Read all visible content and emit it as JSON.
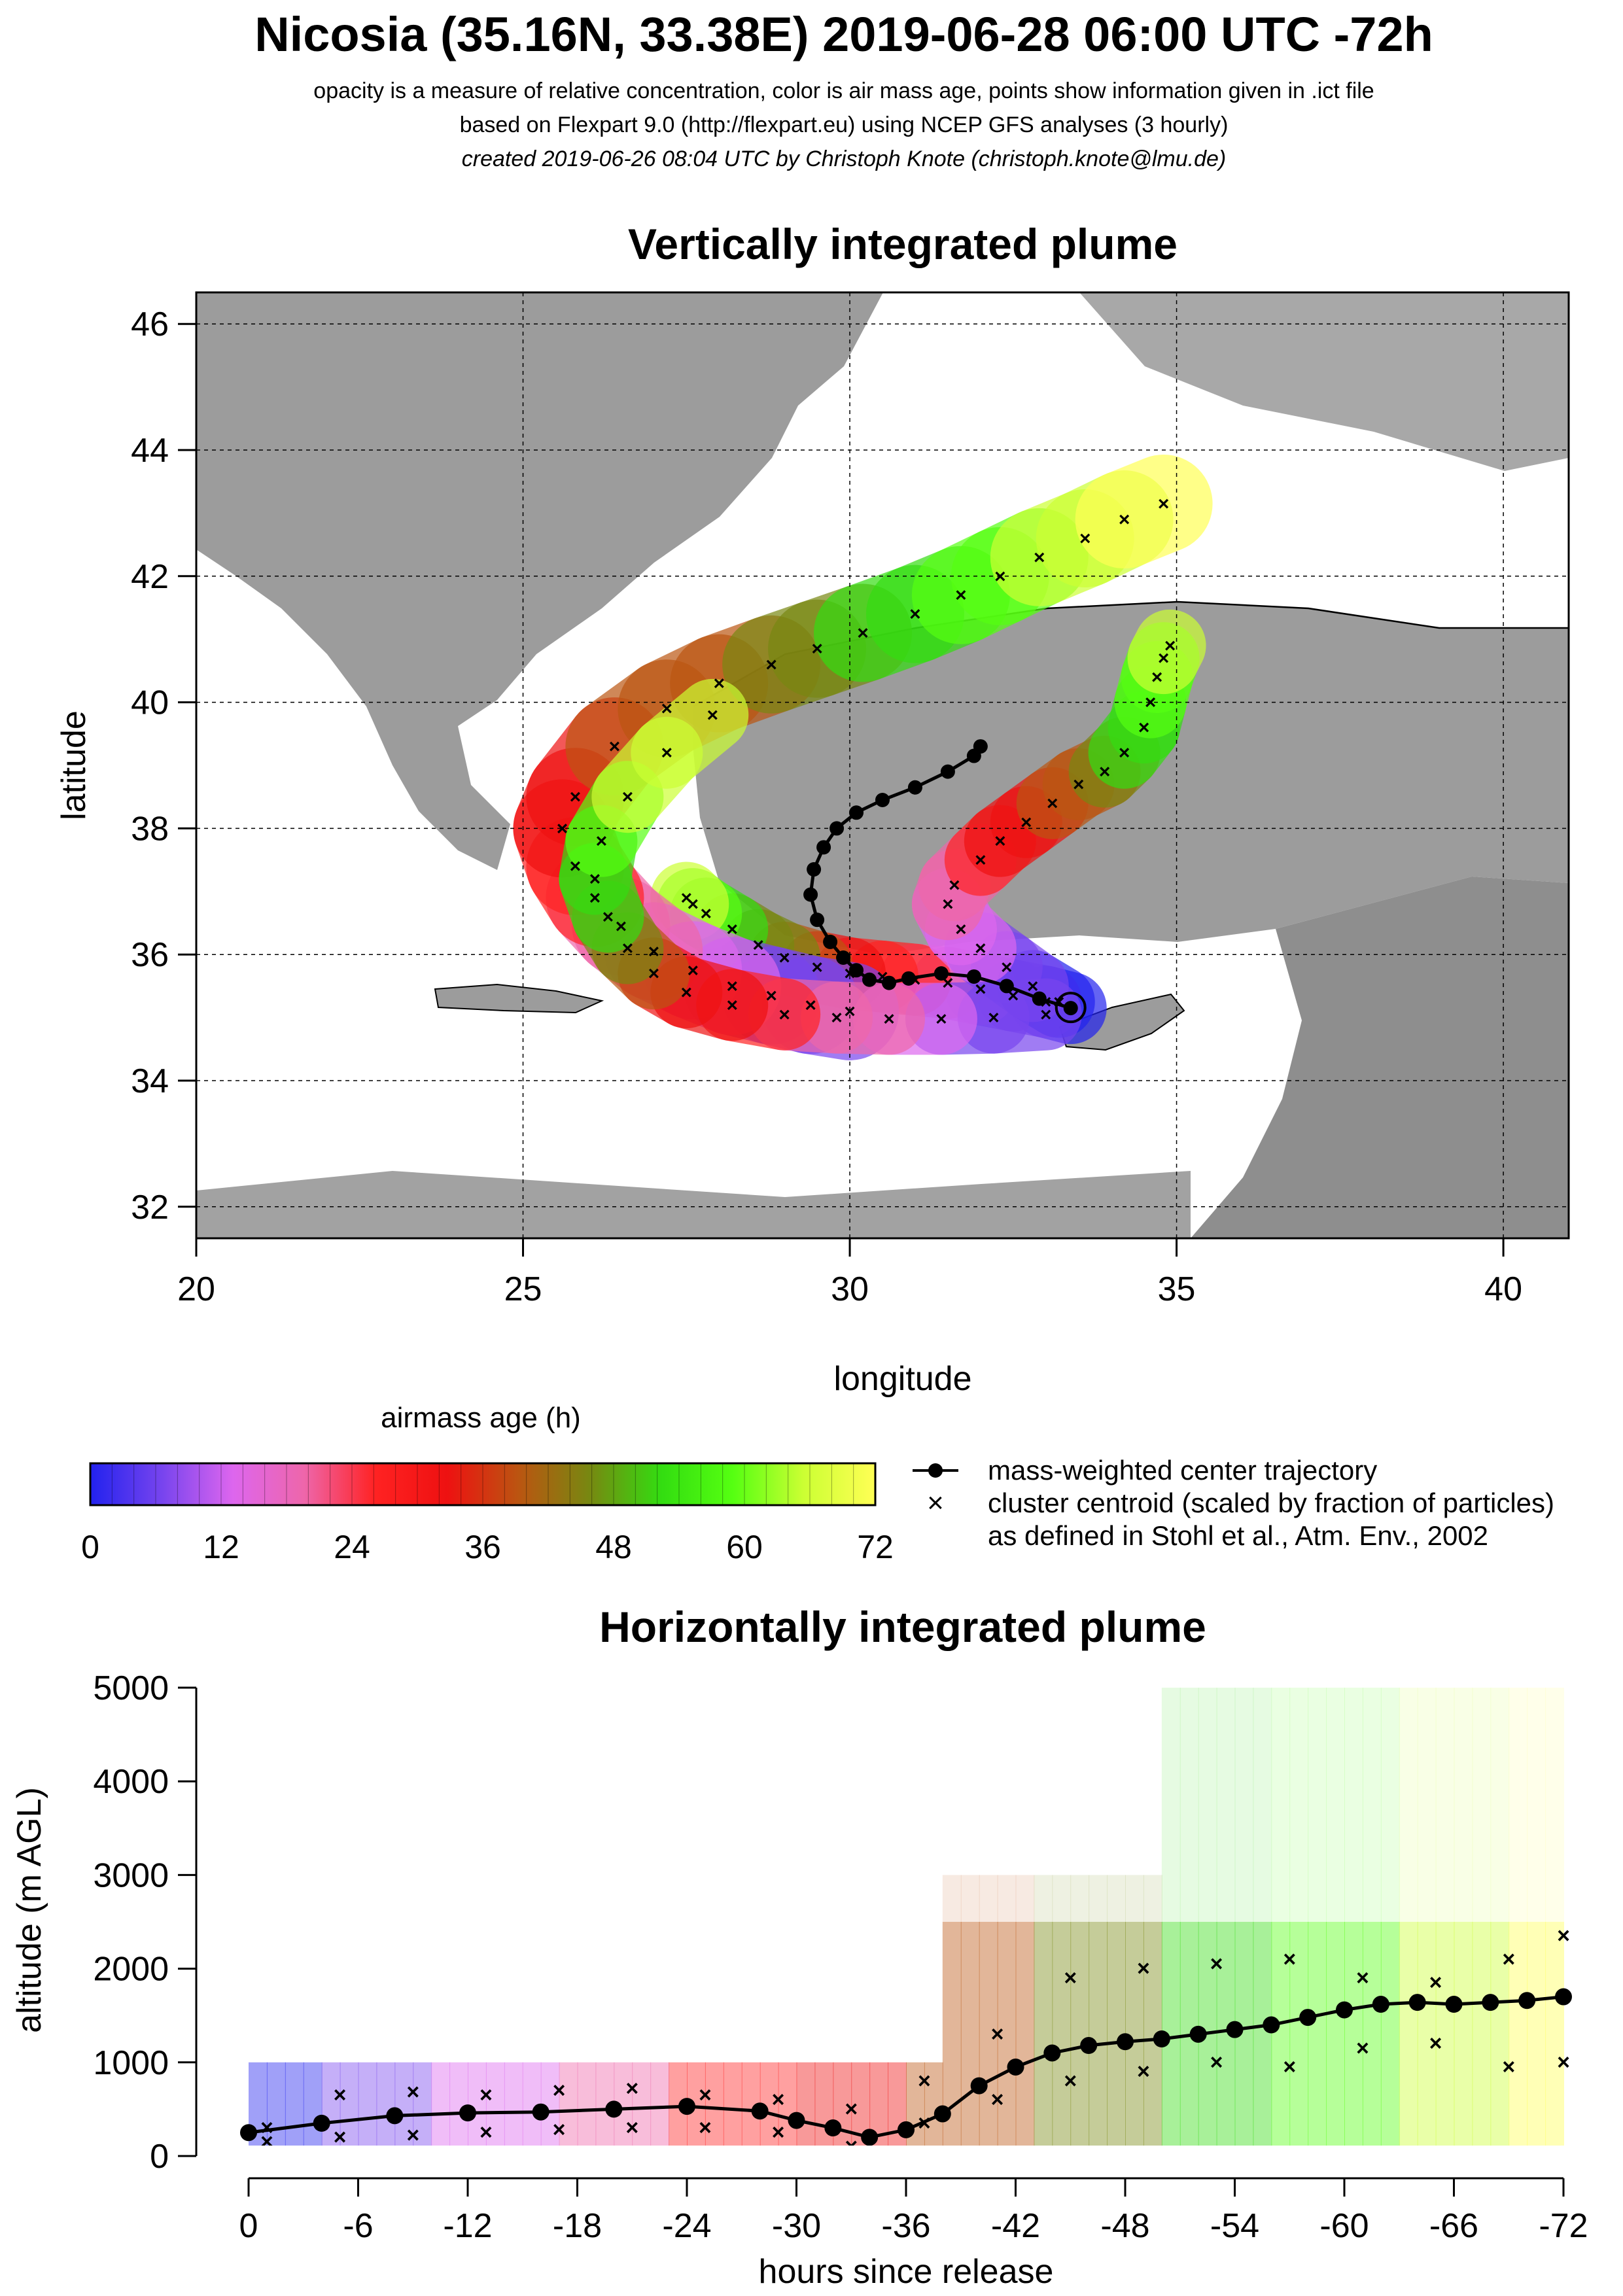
{
  "header": {
    "title": "Nicosia (35.16N, 33.38E) 2019-06-28 06:00 UTC -72h",
    "line1": "opacity is a measure of relative concentration, color is air mass age, points show information given in .ict file",
    "line2": "based on Flexpart 9.0 (http://flexpart.eu) using NCEP GFS analyses (3 hourly)",
    "line3": "created 2019-06-26 08:04 UTC by Christoph Knote (christoph.knote@lmu.de)"
  },
  "colors": {
    "age_gradient": [
      "#2222ee",
      "#7744ee",
      "#dd66ee",
      "#ee66aa",
      "#ff2222",
      "#ee1111",
      "#bb5511",
      "#778811",
      "#33dd11",
      "#55ff11",
      "#ccff33",
      "#ffff55"
    ],
    "land": "#9a9a9a",
    "sea": "#ffffff"
  },
  "chart_data": [
    {
      "type": "map",
      "title": "Vertically integrated plume",
      "xlabel": "longitude",
      "ylabel": "latitude",
      "xlim": [
        20,
        41
      ],
      "ylim": [
        31.5,
        46.5
      ],
      "xticks": [
        20,
        25,
        30,
        35,
        40
      ],
      "yticks": [
        32,
        34,
        36,
        38,
        40,
        42,
        44,
        46
      ],
      "grid": true,
      "release_point": {
        "lon": 33.38,
        "lat": 35.16
      },
      "center_trajectory": {
        "lon": [
          33.38,
          32.9,
          32.4,
          31.9,
          31.4,
          30.9,
          30.6,
          30.3,
          30.1,
          29.9,
          29.7,
          29.5,
          29.4,
          29.45,
          29.6,
          29.8,
          30.1,
          30.5,
          31.0,
          31.5,
          31.9,
          32.0
        ],
        "lat": [
          35.15,
          35.3,
          35.5,
          35.65,
          35.7,
          35.62,
          35.55,
          35.6,
          35.75,
          35.95,
          36.2,
          36.55,
          36.95,
          37.35,
          37.7,
          38.0,
          38.25,
          38.45,
          38.65,
          38.9,
          39.15,
          39.3
        ]
      },
      "clusters": [
        {
          "lon": [
            33.38,
            33.0,
            32.5,
            32.0,
            31.5,
            31.0,
            30.5,
            30.0,
            29.5,
            29.0,
            28.6,
            28.2,
            27.8,
            27.6,
            27.5
          ],
          "lat": [
            35.15,
            35.25,
            35.35,
            35.45,
            35.55,
            35.6,
            35.65,
            35.7,
            35.8,
            35.95,
            36.15,
            36.4,
            36.65,
            36.8,
            36.9
          ]
        },
        {
          "lon": [
            33.2,
            32.8,
            32.4,
            32.0,
            31.7,
            31.5,
            31.6,
            32.0,
            32.3,
            32.7,
            33.1,
            33.5,
            33.9,
            34.2,
            34.5,
            34.6,
            34.7,
            34.8,
            34.9
          ],
          "lat": [
            35.25,
            35.5,
            35.8,
            36.1,
            36.4,
            36.8,
            37.1,
            37.5,
            37.8,
            38.1,
            38.4,
            38.7,
            38.9,
            39.2,
            39.6,
            40.0,
            40.4,
            40.7,
            40.9
          ]
        },
        {
          "lon": [
            30.0,
            29.4,
            28.8,
            28.2,
            27.6,
            27.0,
            26.5,
            26.1,
            25.8,
            25.6,
            25.8,
            26.4,
            27.2,
            28.0,
            28.8,
            29.5,
            30.2,
            31.0,
            31.7,
            32.3,
            32.9,
            33.6,
            34.2,
            34.8
          ],
          "lat": [
            35.1,
            35.2,
            35.35,
            35.5,
            35.75,
            36.05,
            36.45,
            36.9,
            37.4,
            38.0,
            38.5,
            39.3,
            39.9,
            40.3,
            40.6,
            40.85,
            41.1,
            41.4,
            41.7,
            42.0,
            42.3,
            42.6,
            42.9,
            43.15
          ]
        },
        {
          "lon": [
            33.0,
            32.2,
            31.4,
            30.6,
            29.8,
            29.0,
            28.2,
            27.5,
            27.0,
            26.6,
            26.3,
            26.1,
            26.2,
            26.6,
            27.2,
            27.9
          ],
          "lat": [
            35.05,
            35.0,
            34.98,
            34.98,
            35.0,
            35.05,
            35.2,
            35.4,
            35.7,
            36.1,
            36.6,
            37.2,
            37.8,
            38.5,
            39.2,
            39.8
          ]
        }
      ]
    },
    {
      "type": "colorbar",
      "title": "airmass age (h)",
      "min": 0,
      "max": 72,
      "ticks": [
        "0",
        "12",
        "24",
        "36",
        "48",
        "60",
        "72"
      ]
    },
    {
      "type": "line",
      "title": "Horizontally integrated plume",
      "xlabel": "hours since release",
      "ylabel": "altitude (m AGL)",
      "xlim": [
        0,
        -72
      ],
      "ylim": [
        0,
        5000
      ],
      "xticks": [
        "0",
        "-6",
        "-12",
        "-18",
        "-24",
        "-30",
        "-36",
        "-42",
        "-48",
        "-54",
        "-60",
        "-66",
        "-72"
      ],
      "yticks": [
        "0",
        "1000",
        "2000",
        "3000",
        "4000",
        "5000"
      ],
      "center_trajectory": {
        "x": [
          0,
          -4,
          -8,
          -12,
          -16,
          -20,
          -24,
          -28,
          -30,
          -32,
          -34,
          -36,
          -38,
          -40,
          -42,
          -44,
          -46,
          -48,
          -50,
          -52,
          -54,
          -56,
          -58,
          -60,
          -62,
          -64,
          -66,
          -68,
          -70,
          -72
        ],
        "y": [
          250,
          350,
          430,
          460,
          470,
          500,
          530,
          480,
          380,
          300,
          200,
          280,
          450,
          750,
          950,
          1100,
          1180,
          1220,
          1250,
          1300,
          1350,
          1400,
          1480,
          1560,
          1620,
          1640,
          1620,
          1640,
          1660,
          1700
        ]
      },
      "cluster_upper": {
        "x": [
          -1,
          -5,
          -9,
          -13,
          -17,
          -21,
          -25,
          -29,
          -33,
          -37,
          -41,
          -45,
          -49,
          -53,
          -57,
          -61,
          -65,
          -69,
          -72
        ],
        "y": [
          300,
          650,
          680,
          650,
          700,
          720,
          650,
          600,
          500,
          800,
          1300,
          1900,
          2000,
          2050,
          2100,
          1900,
          1850,
          2100,
          2350
        ]
      },
      "cluster_lower": {
        "x": [
          -1,
          -5,
          -9,
          -13,
          -17,
          -21,
          -25,
          -29,
          -33,
          -37,
          -41,
          -45,
          -49,
          -53,
          -57,
          -61,
          -65,
          -69,
          -72
        ],
        "y": [
          150,
          200,
          220,
          250,
          280,
          300,
          300,
          250,
          100,
          350,
          600,
          800,
          900,
          1000,
          950,
          1150,
          1200,
          950,
          1000
        ]
      }
    }
  ],
  "legend": {
    "center_label": "mass-weighted center trajectory",
    "cluster_label": "cluster centroid (scaled by fraction of particles)",
    "cluster_label2": "as defined in Stohl et al., Atm. Env., 2002"
  }
}
